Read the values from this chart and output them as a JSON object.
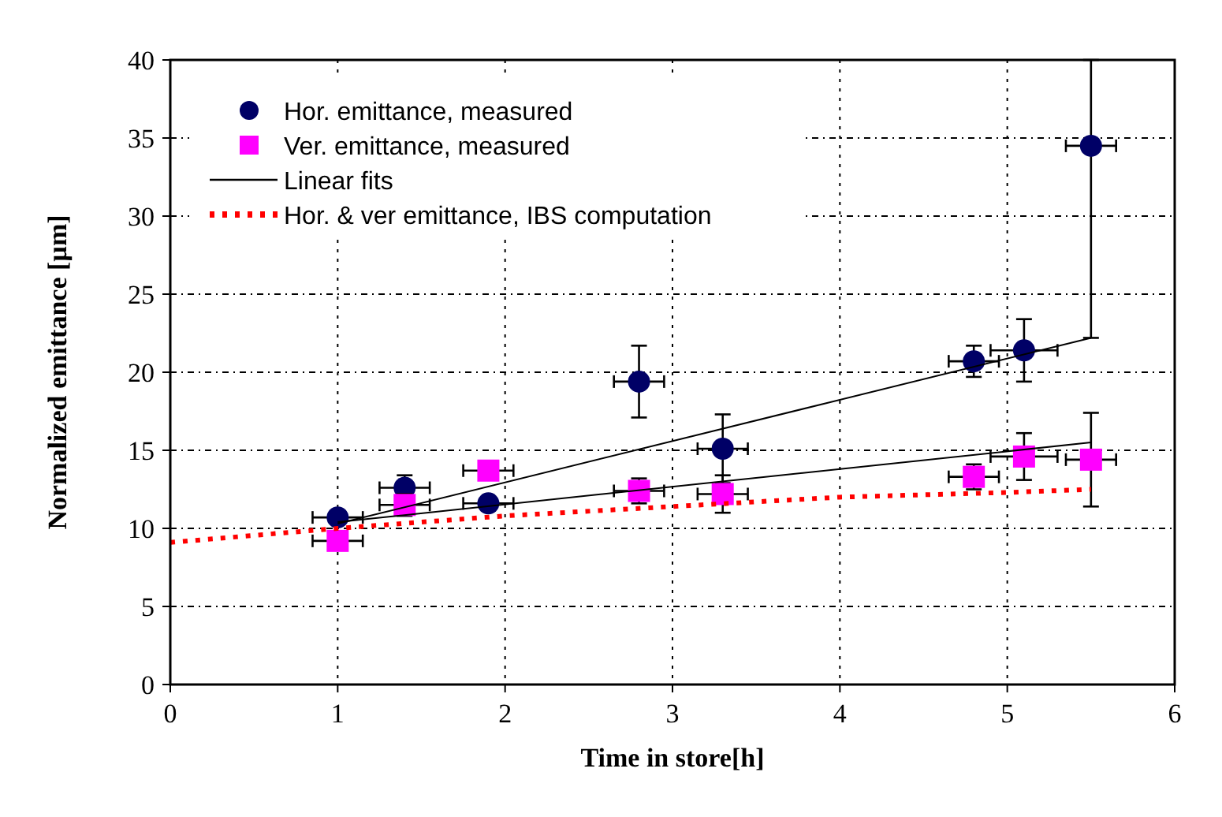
{
  "chart_data": {
    "type": "scatter",
    "xlabel": "Time in store[h]",
    "ylabel": "Normalized emittance [µm]",
    "xlim": [
      0,
      6
    ],
    "ylim": [
      0,
      40
    ],
    "xticks": [
      0,
      1,
      2,
      3,
      4,
      5,
      6
    ],
    "yticks": [
      0,
      5,
      10,
      15,
      20,
      25,
      30,
      35,
      40
    ],
    "grid": true,
    "legend": "top left",
    "series": [
      {
        "name": "Hor. emittance, measured",
        "marker": "circle",
        "color": "#000066",
        "x": [
          1,
          1.4,
          1.9,
          2.8,
          3.3,
          4.8,
          5.1,
          5.5
        ],
        "values": [
          10.7,
          12.6,
          11.6,
          19.4,
          15.1,
          20.7,
          21.4,
          34.5
        ],
        "errors": [
          null,
          0.8,
          null,
          2.3,
          2.2,
          1,
          2,
          [
            22.2,
            40
          ]
        ],
        "xerrors": [
          0.15,
          0.15,
          0.15,
          0.15,
          0.15,
          0.15,
          0.2,
          0.15
        ]
      },
      {
        "name": "Ver. emittance, measured",
        "marker": "square",
        "color": "#ff00ff",
        "x": [
          1,
          1.4,
          1.9,
          2.8,
          3.3,
          4.8,
          5.1,
          5.5
        ],
        "values": [
          9.2,
          11.5,
          13.7,
          12.4,
          12.2,
          13.3,
          14.6,
          14.4
        ],
        "errors": [
          null,
          0.7,
          null,
          0.8,
          1.2,
          0.8,
          1.5,
          3
        ],
        "xerrors": [
          0.15,
          0.15,
          0.15,
          0.15,
          0.15,
          0.15,
          0.2,
          0.15
        ]
      },
      {
        "name": "Linear fits",
        "type": "line",
        "marker": "none",
        "line_style": "solid",
        "color": "#000000",
        "x": [
          1,
          5.5
        ],
        "values": [
          10.3,
          22.2
        ]
      },
      {
        "type": "line",
        "marker": "none",
        "line_style": "solid",
        "color": "#000000",
        "x": [
          1,
          5.5
        ],
        "values": [
          10.4,
          15.5
        ]
      },
      {
        "name": "Hor. & ver emittance, IBS computation",
        "type": "line",
        "marker": "none",
        "line_style": "dotted",
        "color": "#ff0000",
        "x": [
          0,
          1,
          2,
          3,
          4,
          5,
          5.5
        ],
        "values": [
          9.1,
          10,
          10.8,
          11.4,
          12,
          12.3,
          12.5
        ]
      }
    ]
  }
}
